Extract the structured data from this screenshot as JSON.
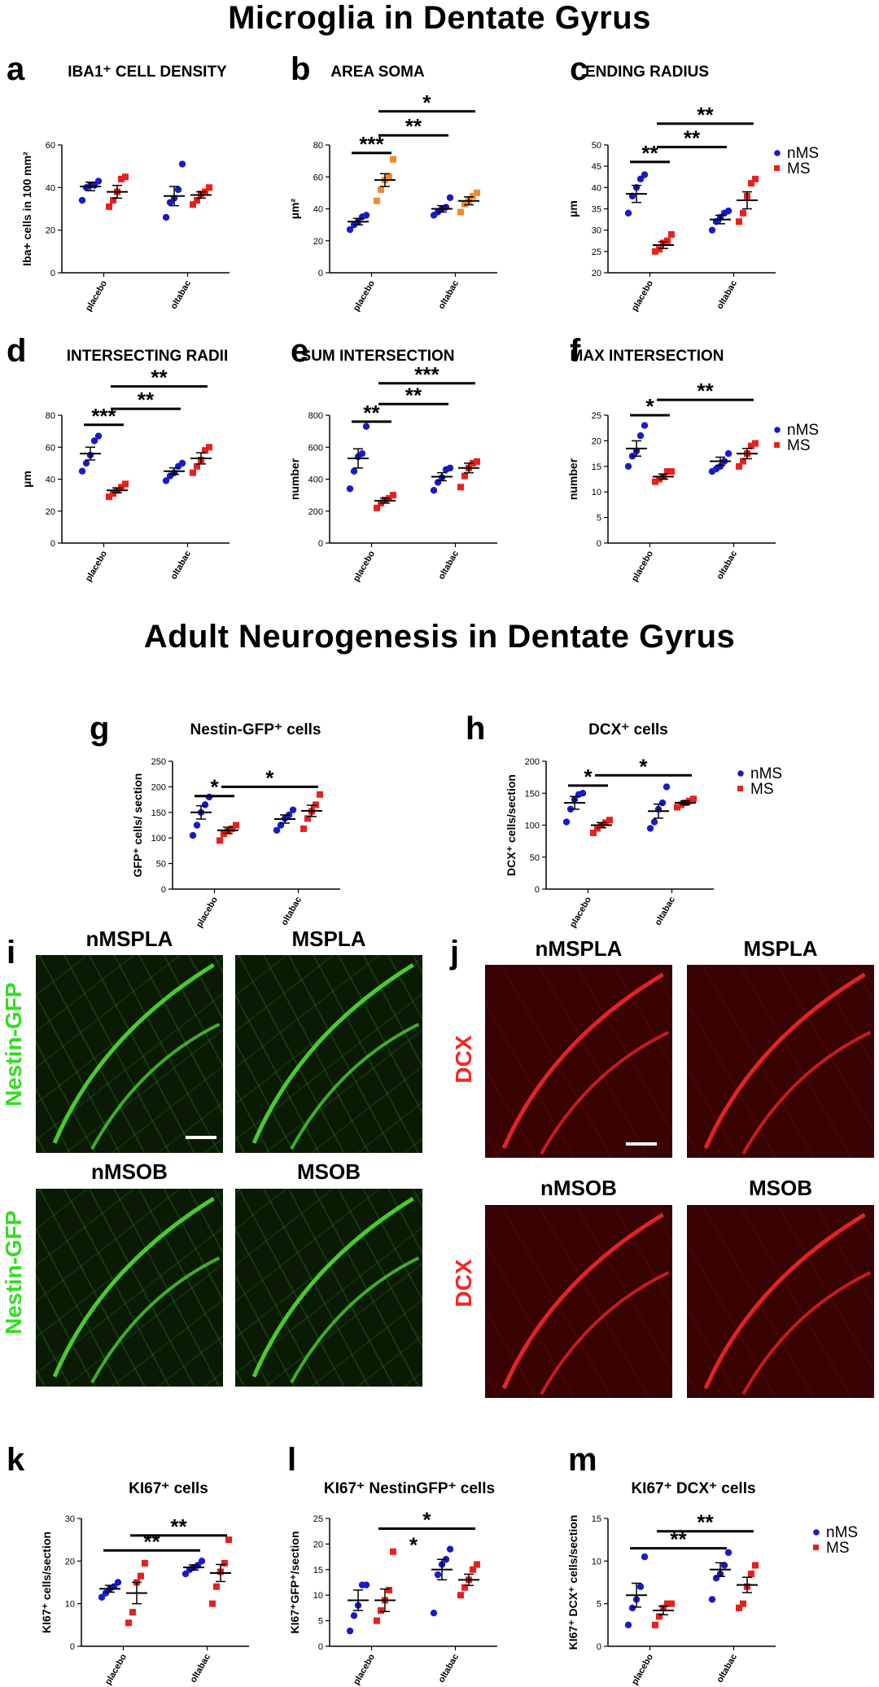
{
  "titles": {
    "microglia": "Microglia in Dentate Gyrus",
    "neurogenesis": "Adult Neurogenesis in Dentate Gyrus"
  },
  "colors": {
    "nMS": "#1a1ac8",
    "MS": "#e8201c",
    "MS_orange": "#f08a30",
    "line": "#000000"
  },
  "legend": [
    "nMS",
    "MS"
  ],
  "chart_data": [
    {
      "id": "a",
      "letter": "a",
      "type": "scatter",
      "title": "IBA1⁺ CELL DENSITY",
      "ylabel": "Iba+ cells in 100 mm²",
      "ylim": [
        0,
        60
      ],
      "yticks": [
        0,
        20,
        40,
        60
      ],
      "categories": [
        "placebo",
        "oltabac"
      ],
      "series": [
        {
          "name": "nMS",
          "category": "placebo",
          "values": [
            34,
            40,
            41,
            41,
            43
          ],
          "mean": 40.5,
          "sem": 2
        },
        {
          "name": "MS",
          "category": "placebo",
          "values": [
            31,
            34,
            38,
            44,
            45
          ],
          "mean": 38,
          "sem": 3
        },
        {
          "name": "nMS",
          "category": "oltabac",
          "values": [
            26,
            33,
            35,
            39,
            51
          ],
          "mean": 36,
          "sem": 4.5
        },
        {
          "name": "MS",
          "category": "oltabac",
          "values": [
            32,
            34,
            37,
            38,
            40
          ],
          "mean": 36.5,
          "sem": 1.5
        }
      ],
      "significance": []
    },
    {
      "id": "b",
      "letter": "b",
      "type": "scatter",
      "title": "AREA SOMA",
      "ylabel": "µm²",
      "ylim": [
        0,
        80
      ],
      "yticks": [
        0,
        20,
        40,
        60,
        80
      ],
      "categories": [
        "placebo",
        "oltabac"
      ],
      "series": [
        {
          "name": "nMS",
          "category": "placebo",
          "values": [
            27,
            30,
            32,
            35,
            36
          ],
          "mean": 32,
          "sem": 2
        },
        {
          "name": "MS",
          "category": "placebo",
          "values": [
            45,
            52,
            58,
            60,
            71
          ],
          "mean": 58,
          "sem": 4,
          "color_key": "MS_orange"
        },
        {
          "name": "nMS",
          "category": "oltabac",
          "values": [
            36,
            38,
            40,
            41,
            47
          ],
          "mean": 40,
          "sem": 2
        },
        {
          "name": "MS",
          "category": "oltabac",
          "values": [
            38,
            43,
            45,
            48,
            50
          ],
          "mean": 45,
          "sem": 2.5,
          "color_key": "MS_orange"
        }
      ],
      "significance": [
        {
          "label": "***",
          "from": 0,
          "to": 1,
          "y": 75
        },
        {
          "label": "**",
          "from": 1,
          "to": 2,
          "y": 86
        },
        {
          "label": "*",
          "from": 1,
          "to": 3,
          "y": 101
        }
      ]
    },
    {
      "id": "c",
      "letter": "c",
      "type": "scatter",
      "title": "ENDING RADIUS",
      "ylabel": "µm",
      "ylim": [
        20,
        50
      ],
      "yticks": [
        20,
        25,
        30,
        35,
        40,
        45,
        50
      ],
      "categories": [
        "placebo",
        "oltabac"
      ],
      "series": [
        {
          "name": "nMS",
          "category": "placebo",
          "values": [
            34,
            38,
            40,
            42,
            43
          ],
          "mean": 38.5,
          "sem": 2
        },
        {
          "name": "MS",
          "category": "placebo",
          "values": [
            25,
            25.5,
            27,
            27.5,
            29
          ],
          "mean": 26.5,
          "sem": 0.8
        },
        {
          "name": "nMS",
          "category": "oltabac",
          "values": [
            30,
            32,
            33,
            34,
            34.5
          ],
          "mean": 32.5,
          "sem": 1
        },
        {
          "name": "MS",
          "category": "oltabac",
          "values": [
            32,
            34,
            38,
            41,
            42
          ],
          "mean": 37,
          "sem": 2
        }
      ],
      "significance": [
        {
          "label": "**",
          "from": 0,
          "to": 1,
          "y": 46
        },
        {
          "label": "**",
          "from": 1,
          "to": 2,
          "y": 49.5
        },
        {
          "label": "**",
          "from": 1,
          "to": 3,
          "y": 55
        }
      ]
    },
    {
      "id": "d",
      "letter": "d",
      "type": "scatter",
      "title": "INTERSECTING RADII",
      "ylabel": "µm",
      "ylim": [
        0,
        80
      ],
      "yticks": [
        0,
        20,
        40,
        60,
        80
      ],
      "categories": [
        "placebo",
        "oltabac"
      ],
      "series": [
        {
          "name": "nMS",
          "category": "placebo",
          "values": [
            45,
            50,
            55,
            64,
            67
          ],
          "mean": 56,
          "sem": 4
        },
        {
          "name": "MS",
          "category": "placebo",
          "values": [
            29,
            31,
            33,
            35,
            37
          ],
          "mean": 33,
          "sem": 1.5
        },
        {
          "name": "nMS",
          "category": "oltabac",
          "values": [
            39,
            42,
            44,
            48,
            50
          ],
          "mean": 45,
          "sem": 2
        },
        {
          "name": "MS",
          "category": "oltabac",
          "values": [
            44,
            48,
            52,
            58,
            60
          ],
          "mean": 53,
          "sem": 3.5
        }
      ],
      "significance": [
        {
          "label": "***",
          "from": 0,
          "to": 1,
          "y": 74
        },
        {
          "label": "**",
          "from": 1,
          "to": 2,
          "y": 84
        },
        {
          "label": "**",
          "from": 1,
          "to": 3,
          "y": 98
        }
      ]
    },
    {
      "id": "e",
      "letter": "e",
      "type": "scatter",
      "title": "SUM INTERSECTION",
      "ylabel": "number",
      "ylim": [
        0,
        800
      ],
      "yticks": [
        0,
        200,
        400,
        600,
        800
      ],
      "categories": [
        "placebo",
        "oltabac"
      ],
      "series": [
        {
          "name": "nMS",
          "category": "placebo",
          "values": [
            340,
            450,
            540,
            560,
            730
          ],
          "mean": 530,
          "sem": 60
        },
        {
          "name": "MS",
          "category": "placebo",
          "values": [
            220,
            250,
            270,
            280,
            300
          ],
          "mean": 265,
          "sem": 15
        },
        {
          "name": "nMS",
          "category": "oltabac",
          "values": [
            330,
            380,
            410,
            460,
            470
          ],
          "mean": 415,
          "sem": 25
        },
        {
          "name": "MS",
          "category": "oltabac",
          "values": [
            350,
            420,
            470,
            500,
            510
          ],
          "mean": 470,
          "sem": 30
        }
      ],
      "significance": [
        {
          "label": "**",
          "from": 0,
          "to": 1,
          "y": 760
        },
        {
          "label": "**",
          "from": 1,
          "to": 2,
          "y": 870
        },
        {
          "label": "***",
          "from": 1,
          "to": 3,
          "y": 1000
        }
      ]
    },
    {
      "id": "f",
      "letter": "f",
      "type": "scatter",
      "title": "MAX INTERSECTION",
      "ylabel": "number",
      "ylim": [
        0,
        25
      ],
      "yticks": [
        0,
        5,
        10,
        15,
        20,
        25
      ],
      "categories": [
        "placebo",
        "oltabac"
      ],
      "series": [
        {
          "name": "nMS",
          "category": "placebo",
          "values": [
            15,
            17,
            18,
            21,
            23
          ],
          "mean": 18.5,
          "sem": 1.5
        },
        {
          "name": "MS",
          "category": "placebo",
          "values": [
            12,
            12.5,
            13,
            14,
            14
          ],
          "mean": 13,
          "sem": 0.5
        },
        {
          "name": "nMS",
          "category": "oltabac",
          "values": [
            14,
            14.5,
            15,
            16,
            17.5
          ],
          "mean": 16,
          "sem": 0.8
        },
        {
          "name": "MS",
          "category": "oltabac",
          "values": [
            15,
            16,
            17.5,
            19,
            19.5
          ],
          "mean": 17.5,
          "sem": 1
        }
      ],
      "significance": [
        {
          "label": "*",
          "from": 0,
          "to": 1,
          "y": 25
        },
        {
          "label": "**",
          "from": 1,
          "to": 3,
          "y": 28
        }
      ]
    },
    {
      "id": "g",
      "letter": "g",
      "type": "scatter",
      "title": "Nestin-GFP⁺ cells",
      "ylabel": "GFP⁺ cells/ section",
      "ylim": [
        0,
        250
      ],
      "yticks": [
        0,
        50,
        100,
        150,
        200,
        250
      ],
      "categories": [
        "placebo",
        "oltabac"
      ],
      "series": [
        {
          "name": "nMS",
          "category": "placebo",
          "values": [
            105,
            125,
            150,
            165,
            180
          ],
          "mean": 150,
          "sem": 13
        },
        {
          "name": "MS",
          "category": "placebo",
          "values": [
            95,
            108,
            113,
            118,
            125
          ],
          "mean": 115,
          "sem": 6
        },
        {
          "name": "nMS",
          "category": "oltabac",
          "values": [
            115,
            125,
            138,
            145,
            155
          ],
          "mean": 137,
          "sem": 8
        },
        {
          "name": "MS",
          "category": "oltabac",
          "values": [
            118,
            138,
            152,
            165,
            185
          ],
          "mean": 153,
          "sem": 11
        }
      ],
      "significance": [
        {
          "label": "*",
          "from": 0,
          "to": 1,
          "y": 182
        },
        {
          "label": "*",
          "from": 1,
          "to": 3,
          "y": 200
        }
      ]
    },
    {
      "id": "h",
      "letter": "h",
      "type": "scatter",
      "title": "DCX⁺ cells",
      "ylabel": "DCX⁺ cells/section",
      "ylim": [
        0,
        200
      ],
      "yticks": [
        0,
        50,
        100,
        150,
        200
      ],
      "categories": [
        "placebo",
        "oltabac"
      ],
      "series": [
        {
          "name": "nMS",
          "category": "placebo",
          "values": [
            105,
            125,
            140,
            148,
            150
          ],
          "mean": 135,
          "sem": 10
        },
        {
          "name": "MS",
          "category": "placebo",
          "values": [
            88,
            95,
            100,
            104,
            108
          ],
          "mean": 100,
          "sem": 4
        },
        {
          "name": "nMS",
          "category": "oltabac",
          "values": [
            95,
            105,
            125,
            135,
            160
          ],
          "mean": 122,
          "sem": 11
        },
        {
          "name": "MS",
          "category": "oltabac",
          "values": [
            128,
            132,
            135,
            138,
            141
          ],
          "mean": 135,
          "sem": 3
        }
      ],
      "significance": [
        {
          "label": "*",
          "from": 0,
          "to": 1,
          "y": 162
        },
        {
          "label": "*",
          "from": 1,
          "to": 3,
          "y": 178
        }
      ]
    },
    {
      "id": "k",
      "letter": "k",
      "type": "scatter",
      "title": "KI67⁺ cells",
      "ylabel": "KI67⁺ cells/section",
      "ylim": [
        0,
        30
      ],
      "yticks": [
        0,
        10,
        20,
        30
      ],
      "categories": [
        "placebo",
        "oltabac"
      ],
      "series": [
        {
          "name": "nMS",
          "category": "placebo",
          "values": [
            11.5,
            12.5,
            13.5,
            14,
            15
          ],
          "mean": 13.5,
          "sem": 0.8
        },
        {
          "name": "MS",
          "category": "placebo",
          "values": [
            5.5,
            8,
            15,
            16.5,
            19.5
          ],
          "mean": 12.5,
          "sem": 2.5
        },
        {
          "name": "nMS",
          "category": "oltabac",
          "values": [
            17,
            18,
            18.5,
            19,
            20
          ],
          "mean": 18.5,
          "sem": 0.6
        },
        {
          "name": "MS",
          "category": "oltabac",
          "values": [
            10,
            14,
            17.5,
            19.5,
            25
          ],
          "mean": 17.2,
          "sem": 2
        }
      ],
      "significance": [
        {
          "label": "**",
          "from": 0,
          "to": 2,
          "y": 22.5
        },
        {
          "label": "**",
          "from": 1,
          "to": 3,
          "y": 26
        }
      ]
    },
    {
      "id": "l",
      "letter": "l",
      "type": "scatter",
      "title": "KI67⁺ NestinGFP⁺ cells",
      "ylabel": "KI67⁺GFP⁺/section",
      "ylim": [
        0,
        25
      ],
      "yticks": [
        0,
        5,
        10,
        15,
        20,
        25
      ],
      "categories": [
        "placebo",
        "oltabac"
      ],
      "series": [
        {
          "name": "nMS",
          "category": "placebo",
          "values": [
            3,
            6,
            8,
            12,
            12
          ],
          "mean": 9,
          "sem": 2
        },
        {
          "name": "MS",
          "category": "placebo",
          "values": [
            5,
            7,
            9,
            11,
            18.5
          ],
          "mean": 9,
          "sem": 2.2
        },
        {
          "name": "nMS",
          "category": "oltabac",
          "values": [
            6.5,
            14,
            16,
            17,
            19
          ],
          "mean": 15,
          "sem": 2
        },
        {
          "name": "MS",
          "category": "oltabac",
          "values": [
            10,
            11.5,
            13,
            15,
            16
          ],
          "mean": 13,
          "sem": 1.1
        }
      ],
      "significance": [
        {
          "label": "*",
          "from": 1,
          "to": 3,
          "y": 23
        }
      ],
      "extra_stars": [
        {
          "label": "*",
          "x_between": [
            1,
            2
          ],
          "y": 20
        }
      ]
    },
    {
      "id": "m",
      "letter": "m",
      "type": "scatter",
      "title": "KI67⁺ DCX⁺ cells",
      "ylabel": "KI67⁺ DCX⁺ cells/section",
      "ylim": [
        0,
        15
      ],
      "yticks": [
        0,
        5,
        10,
        15
      ],
      "categories": [
        "placebo",
        "oltabac"
      ],
      "series": [
        {
          "name": "nMS",
          "category": "placebo",
          "values": [
            2.5,
            4.5,
            5.5,
            7,
            10.5
          ],
          "mean": 6,
          "sem": 1.4
        },
        {
          "name": "MS",
          "category": "placebo",
          "values": [
            2.5,
            3.5,
            4.5,
            5,
            5
          ],
          "mean": 4.2,
          "sem": 0.5
        },
        {
          "name": "nMS",
          "category": "oltabac",
          "values": [
            5.5,
            8,
            8.5,
            9.5,
            11
          ],
          "mean": 9,
          "sem": 0.8
        },
        {
          "name": "MS",
          "category": "oltabac",
          "values": [
            4.5,
            5,
            7,
            8.5,
            9.5
          ],
          "mean": 7.2,
          "sem": 0.9
        }
      ],
      "significance": [
        {
          "label": "**",
          "from": 0,
          "to": 2,
          "y": 11.5
        },
        {
          "label": "**",
          "from": 1,
          "to": 3,
          "y": 13.5
        }
      ]
    }
  ],
  "micrographs": {
    "i": {
      "letter": "i",
      "stain_label": "Nestin-GFP",
      "panels": [
        {
          "title": "nMSPLA",
          "scale_bar": true
        },
        {
          "title": "MSPLA",
          "scale_bar": false
        },
        {
          "title": "nMSOB",
          "scale_bar": false
        },
        {
          "title": "MSOB",
          "scale_bar": false
        }
      ]
    },
    "j": {
      "letter": "j",
      "stain_label": "DCX",
      "panels": [
        {
          "title": "nMSPLA",
          "scale_bar": true
        },
        {
          "title": "MSPLA",
          "scale_bar": false
        },
        {
          "title": "nMSOB",
          "scale_bar": false
        },
        {
          "title": "MSOB",
          "scale_bar": false
        }
      ]
    }
  }
}
